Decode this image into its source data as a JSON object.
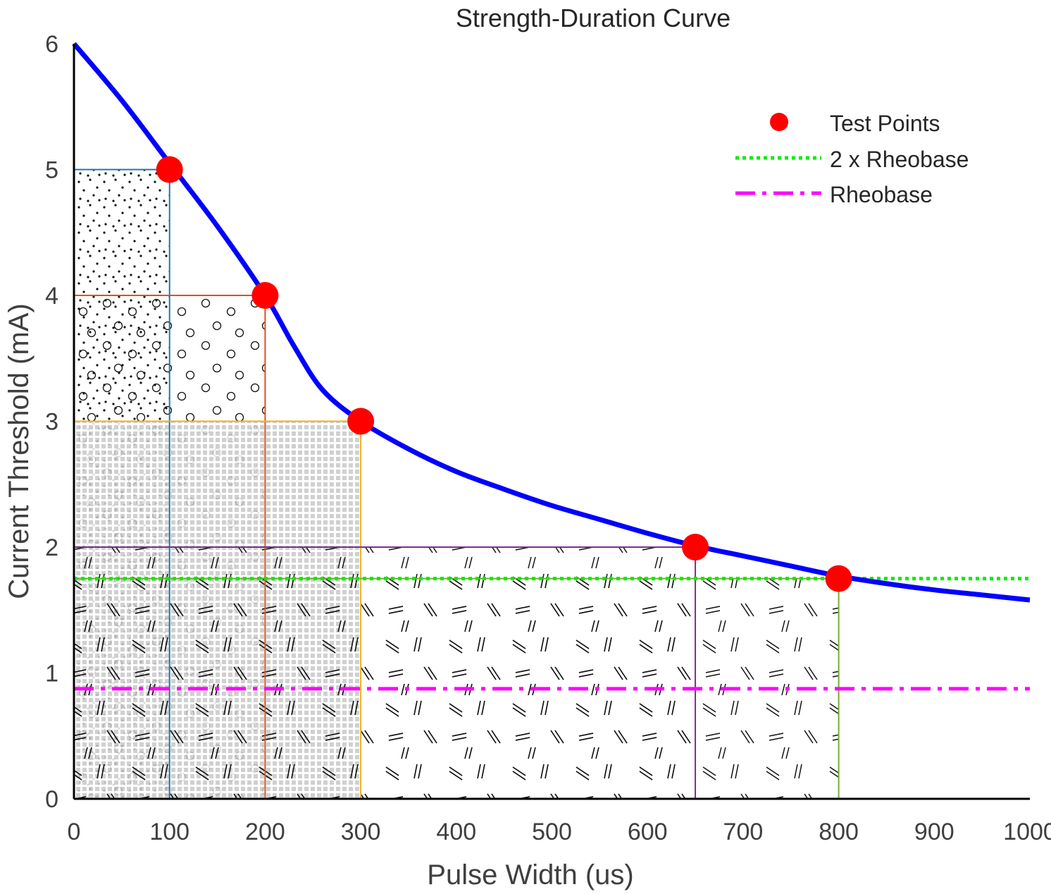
{
  "chart_data": {
    "type": "line",
    "title": "Strength-Duration Curve",
    "xlabel": "Pulse Width (us)",
    "ylabel": "Current Threshold (mA)",
    "xlim": [
      0,
      1000
    ],
    "ylim": [
      0,
      6
    ],
    "xticks": [
      "0",
      "100",
      "200",
      "300",
      "400",
      "500",
      "600",
      "700",
      "800",
      "900",
      "1000"
    ],
    "yticks": [
      "0",
      "1",
      "2",
      "3",
      "4",
      "5",
      "6"
    ],
    "xtick_values": [
      0,
      100,
      200,
      300,
      400,
      500,
      600,
      700,
      800,
      900,
      1000
    ],
    "ytick_values": [
      0,
      1,
      2,
      3,
      4,
      5,
      6
    ],
    "grid": false,
    "legend_position": "top-right",
    "curve": {
      "color": "#0000ff",
      "x": [
        0,
        50,
        100,
        150,
        200,
        230,
        260,
        300,
        350,
        400,
        450,
        500,
        550,
        600,
        650,
        700,
        750,
        800,
        850,
        900,
        950,
        1000
      ],
      "y": [
        6.0,
        5.55,
        5.05,
        4.55,
        4.0,
        3.6,
        3.25,
        3.0,
        2.78,
        2.6,
        2.46,
        2.33,
        2.22,
        2.11,
        2.01,
        1.93,
        1.85,
        1.77,
        1.71,
        1.66,
        1.62,
        1.58
      ]
    },
    "series": [
      {
        "name": "Test Points",
        "type": "scatter",
        "color": "#ff0000",
        "x": [
          100,
          200,
          300,
          650,
          800
        ],
        "y": [
          5,
          4,
          3,
          2,
          1.75
        ]
      },
      {
        "name": "2 x Rheobase",
        "type": "hline",
        "style": "dotted",
        "color": "#00ee00",
        "y": 1.75
      },
      {
        "name": "Rheobase",
        "type": "hline",
        "style": "dashed",
        "color": "#ff00ff",
        "y": 0.875
      }
    ],
    "regions": [
      {
        "x": [
          0,
          100
        ],
        "y": [
          0,
          5
        ],
        "pattern": "dots",
        "edge": "#1f77b4"
      },
      {
        "x": [
          0,
          200
        ],
        "y": [
          0,
          4
        ],
        "pattern": "circles",
        "edge": "#d95319"
      },
      {
        "x": [
          0,
          300
        ],
        "y": [
          0,
          3
        ],
        "pattern": "grid",
        "edge": "#edb120"
      },
      {
        "x": [
          0,
          650
        ],
        "y": [
          0,
          2
        ],
        "pattern": "hatch",
        "edge": "#7e2f8e"
      },
      {
        "x": [
          0,
          800
        ],
        "y": [
          0,
          1.75
        ],
        "pattern": "hatch",
        "edge": "#77ac30"
      }
    ]
  }
}
